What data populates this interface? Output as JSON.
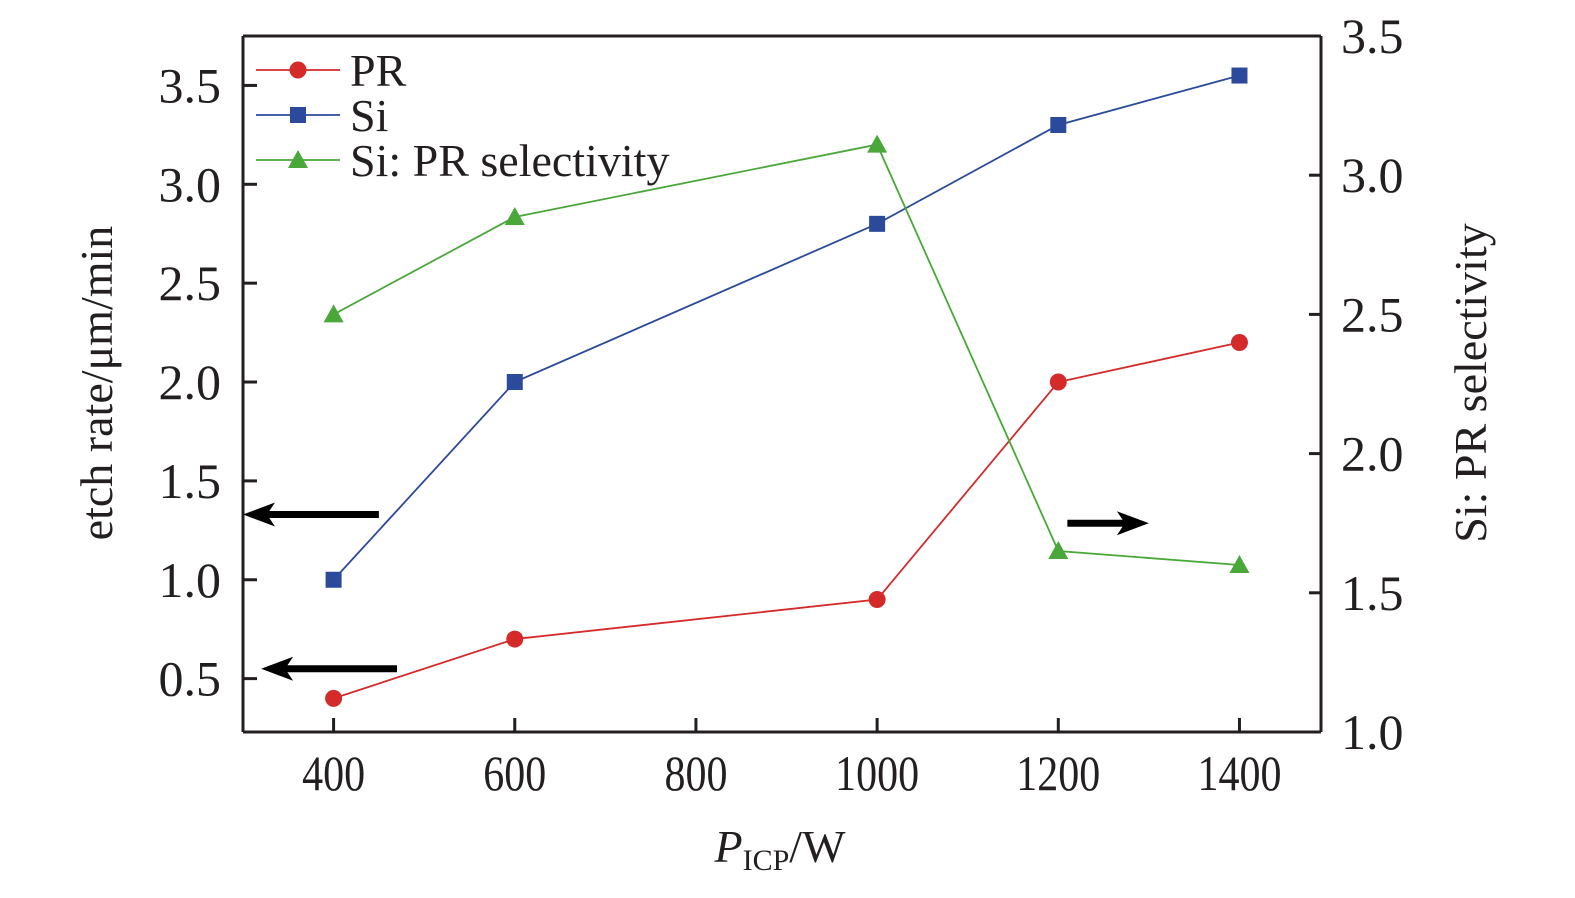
{
  "chart_data": {
    "type": "line",
    "title": "",
    "xlabel": "P_ICP/W",
    "xlabel_main": "P",
    "xlabel_sub": "ICP",
    "xlabel_unit": "/W",
    "ylabel": "etch rate/μm/min",
    "y2label": "Si: PR selectivity",
    "x": [
      400,
      600,
      1000,
      1200,
      1400
    ],
    "xlim": [
      300,
      1490
    ],
    "ylim": [
      0.23,
      3.75
    ],
    "y2lim": [
      1.0,
      3.5
    ],
    "xticks": [
      400,
      600,
      800,
      1000,
      1200,
      1400
    ],
    "xtick_labels": [
      "400",
      "600",
      "800",
      "1000",
      "1200",
      "1400"
    ],
    "yticks": [
      0.5,
      1.0,
      1.5,
      2.0,
      2.5,
      3.0,
      3.5
    ],
    "ytick_labels": [
      "0.5",
      "1.0",
      "1.5",
      "2.0",
      "2.5",
      "3.0",
      "3.5"
    ],
    "y2ticks": [
      1.0,
      1.5,
      2.0,
      2.5,
      3.0,
      3.5
    ],
    "y2tick_labels": [
      "1.0",
      "1.5",
      "2.0",
      "2.5",
      "3.0",
      "3.5"
    ],
    "grid": false,
    "legend_position": "top-left",
    "series": [
      {
        "name": "PR",
        "axis": "left",
        "marker": "circle",
        "color": "#d42a2a",
        "values": [
          0.4,
          0.7,
          0.9,
          2.0,
          2.2
        ]
      },
      {
        "name": "Si",
        "axis": "left",
        "marker": "square",
        "color": "#2b4a9b",
        "values": [
          1.0,
          2.0,
          2.8,
          3.3,
          3.55
        ]
      },
      {
        "name": "Si: PR selectivity",
        "axis": "right",
        "marker": "triangle",
        "color": "#4aa83a",
        "values": [
          2.5,
          2.85,
          3.11,
          1.65,
          1.6
        ]
      }
    ],
    "annotations": [
      {
        "type": "arrow",
        "direction": "left",
        "points_to": "left axis",
        "series": "Si",
        "x_range": [
          300,
          450
        ],
        "y_left": 1.33
      },
      {
        "type": "arrow",
        "direction": "left",
        "points_to": "left axis",
        "series": "PR",
        "x_range": [
          320,
          470
        ],
        "y_left": 0.55
      },
      {
        "type": "arrow",
        "direction": "right",
        "points_to": "right axis",
        "series": "Si: PR selectivity",
        "x_range": [
          1210,
          1300
        ],
        "y_right": 1.75
      }
    ]
  }
}
